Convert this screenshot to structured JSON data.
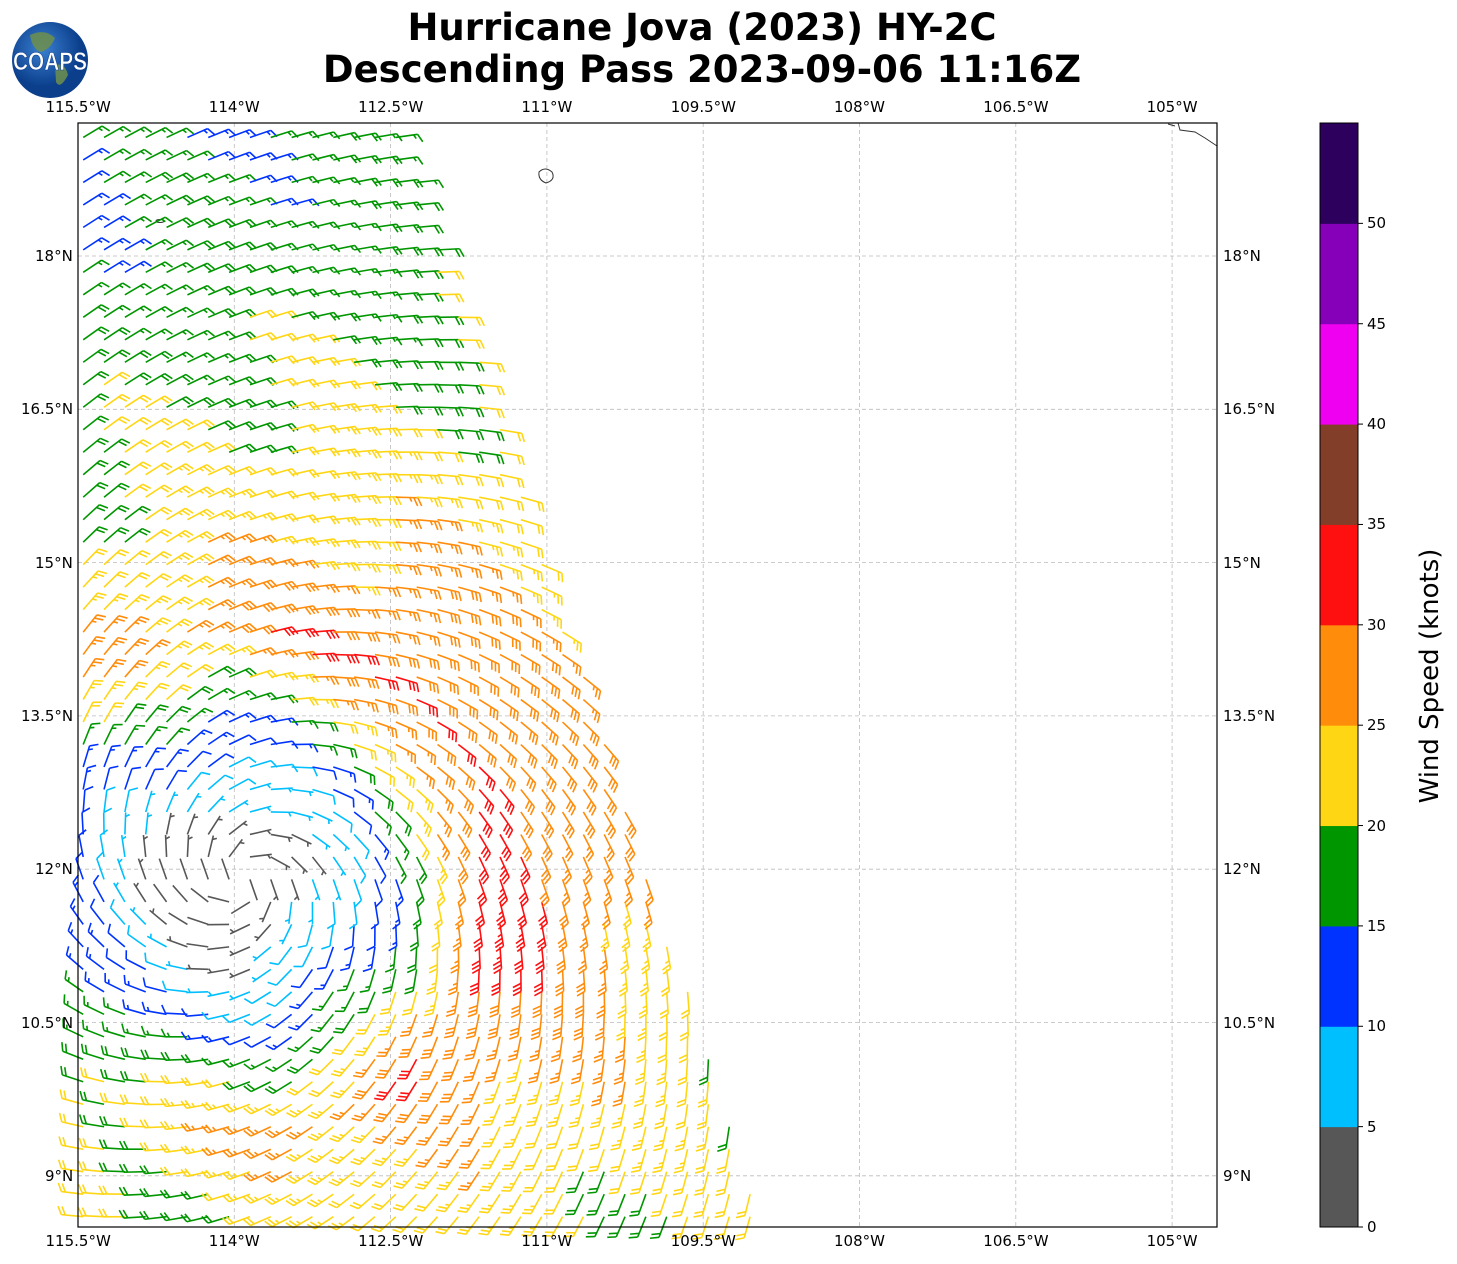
{
  "title": {
    "line1": "Hurricane Jova (2023) HY-2C",
    "line2": "Descending Pass 2023-09-06 11:16Z"
  },
  "logo": {
    "text": "COAPS"
  },
  "axes": {
    "lon_ticks": [
      {
        "value": -115.5,
        "label": "115.5°W"
      },
      {
        "value": -114,
        "label": "114°W"
      },
      {
        "value": -112.5,
        "label": "112.5°W"
      },
      {
        "value": -111,
        "label": "111°W"
      },
      {
        "value": -109.5,
        "label": "109.5°W"
      },
      {
        "value": -108,
        "label": "108°W"
      },
      {
        "value": -106.5,
        "label": "106.5°W"
      },
      {
        "value": -105,
        "label": "105°W"
      }
    ],
    "lat_ticks": [
      {
        "value": 9,
        "label": "9°N"
      },
      {
        "value": 10.5,
        "label": "10.5°N"
      },
      {
        "value": 12,
        "label": "12°N"
      },
      {
        "value": 13.5,
        "label": "13.5°N"
      },
      {
        "value": 15,
        "label": "15°N"
      },
      {
        "value": 16.5,
        "label": "16.5°N"
      },
      {
        "value": 18,
        "label": "18°N"
      }
    ],
    "lon_range": [
      -115.5,
      -104.57
    ],
    "lat_range": [
      8.5,
      19.3
    ]
  },
  "chart_data": {
    "type": "wind-barb-map",
    "description_units": "knots",
    "swath_east_edge": [
      {
        "lon": -112.4,
        "lat": 19.3
      },
      {
        "lon": -108.9,
        "lat": 8.5
      }
    ],
    "circulation_center": {
      "lon": -113.9,
      "lat": 11.9
    },
    "max_wind_kt": 33,
    "radius_max_wind_deg": 2.4
  },
  "colorbar": {
    "label": "Wind Speed (knots)",
    "bins": [
      {
        "min": 0,
        "max": 5,
        "color": "#575757"
      },
      {
        "min": 5,
        "max": 10,
        "color": "#00bfff"
      },
      {
        "min": 10,
        "max": 15,
        "color": "#0033ff"
      },
      {
        "min": 15,
        "max": 20,
        "color": "#009600"
      },
      {
        "min": 20,
        "max": 25,
        "color": "#ffd614"
      },
      {
        "min": 25,
        "max": 30,
        "color": "#ff8c0a"
      },
      {
        "min": 30,
        "max": 35,
        "color": "#ff1010"
      },
      {
        "min": 35,
        "max": 40,
        "color": "#823e28"
      },
      {
        "min": 40,
        "max": 45,
        "color": "#f000f0"
      },
      {
        "min": 45,
        "max": 50,
        "color": "#8500b8"
      },
      {
        "min": 50,
        "max": 55,
        "color": "#2d005e"
      }
    ],
    "ticks": [
      "0",
      "5",
      "10",
      "15",
      "20",
      "25",
      "30",
      "35",
      "40",
      "45",
      "50"
    ]
  }
}
